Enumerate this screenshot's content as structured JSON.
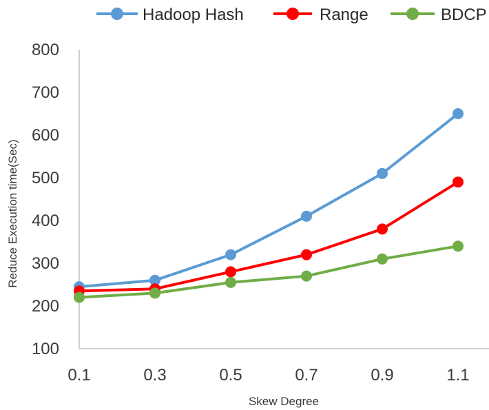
{
  "chart_data": {
    "type": "line",
    "title": "",
    "xlabel": "Skew Degree",
    "ylabel": "Reduce  Execution time(Sec)",
    "categories": [
      "0.1",
      "0.3",
      "0.5",
      "0.7",
      "0.9",
      "1.1"
    ],
    "ylim": [
      100,
      800
    ],
    "yticks": [
      100,
      200,
      300,
      400,
      500,
      600,
      700,
      800
    ],
    "grid": false,
    "legend_position": "top",
    "series": [
      {
        "name": "Hadoop Hash",
        "color": "#5b9bd5",
        "values": [
          245,
          260,
          320,
          410,
          510,
          650
        ]
      },
      {
        "name": "Range",
        "color": "#ff0000",
        "values": [
          235,
          240,
          280,
          320,
          380,
          490
        ]
      },
      {
        "name": "BDCP",
        "color": "#70ad47",
        "values": [
          220,
          230,
          255,
          270,
          310,
          340
        ]
      }
    ]
  }
}
